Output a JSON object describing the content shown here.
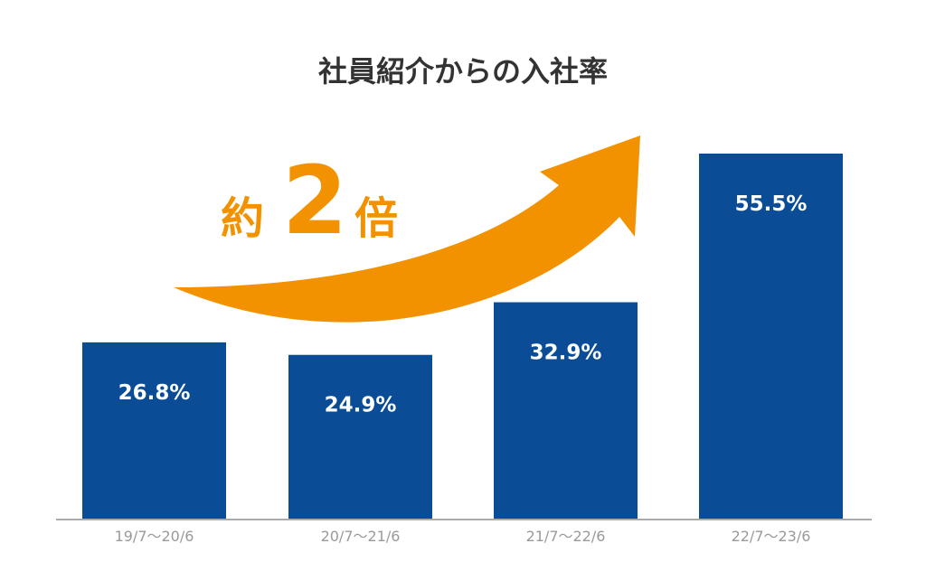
{
  "chart_data": {
    "type": "bar",
    "title": "社員紹介からの入社率",
    "categories": [
      "19/7～20/6",
      "20/7～21/6",
      "21/7～22/6",
      "22/7～23/6"
    ],
    "values": [
      26.8,
      24.9,
      32.9,
      55.5
    ],
    "data_labels": [
      "26.8%",
      "24.9%",
      "32.9%",
      "55.5%"
    ],
    "ylim": [
      0,
      60
    ],
    "grid": false,
    "callout": {
      "prefix": "約",
      "number": "2",
      "suffix": "倍"
    }
  },
  "colors": {
    "bar": "#0a4d96",
    "arrow": "#f39200",
    "axis": "#aaaaaa",
    "title": "#333333",
    "tick": "#9a9a9a"
  }
}
